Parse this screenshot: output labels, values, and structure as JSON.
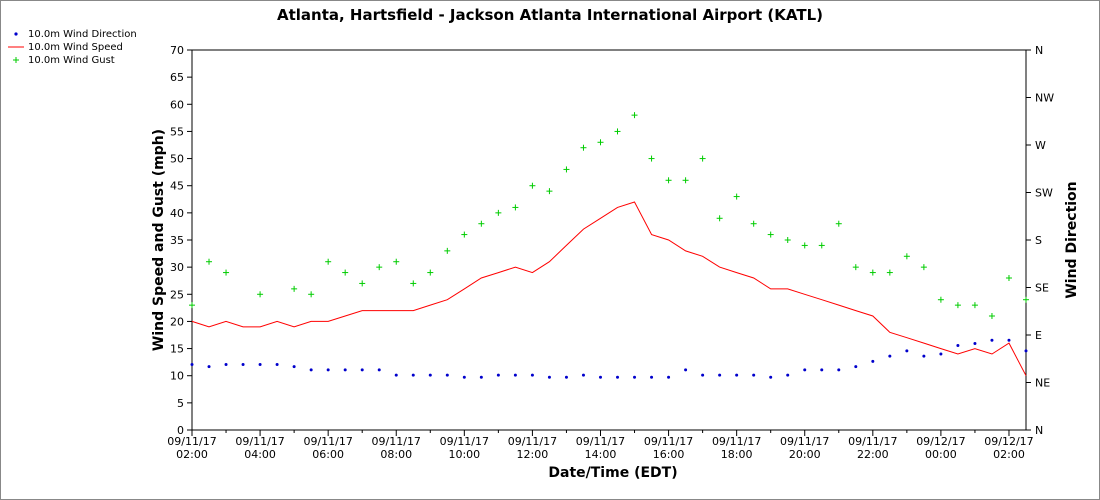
{
  "chart_data": {
    "type": "line",
    "title": "Atlanta, Hartsfield - Jackson Atlanta International Airport (KATL)",
    "xlabel": "Date/Time (EDT)",
    "ylabel": "Wind Speed and Gust (mph)",
    "y2label": "Wind Direction",
    "xlim": [
      2.0,
      26.5
    ],
    "ylim": [
      0,
      70
    ],
    "y_ticks": [
      "0",
      "5",
      "10",
      "15",
      "20",
      "25",
      "30",
      "35",
      "40",
      "45",
      "50",
      "55",
      "60",
      "65",
      "70"
    ],
    "y2_ticks": [
      "N",
      "NE",
      "E",
      "SE",
      "S",
      "SW",
      "W",
      "NW",
      "N"
    ],
    "x_ticks": [
      {
        "date": "09/11/17",
        "time": "02:00",
        "hour": 2
      },
      {
        "date": "09/11/17",
        "time": "04:00",
        "hour": 4
      },
      {
        "date": "09/11/17",
        "time": "06:00",
        "hour": 6
      },
      {
        "date": "09/11/17",
        "time": "08:00",
        "hour": 8
      },
      {
        "date": "09/11/17",
        "time": "10:00",
        "hour": 10
      },
      {
        "date": "09/11/17",
        "time": "12:00",
        "hour": 12
      },
      {
        "date": "09/11/17",
        "time": "14:00",
        "hour": 14
      },
      {
        "date": "09/11/17",
        "time": "16:00",
        "hour": 16
      },
      {
        "date": "09/11/17",
        "time": "18:00",
        "hour": 18
      },
      {
        "date": "09/11/17",
        "time": "20:00",
        "hour": 20
      },
      {
        "date": "09/11/17",
        "time": "22:00",
        "hour": 22
      },
      {
        "date": "09/12/17",
        "time": "00:00",
        "hour": 24
      },
      {
        "date": "09/12/17",
        "time": "02:00",
        "hour": 26
      }
    ],
    "legend_position": "top-left",
    "grid": false,
    "series": [
      {
        "name": "10.0m Wind Direction",
        "marker": "dot",
        "color": "#0000cc",
        "axis": "y2",
        "x": [
          2.0,
          2.5,
          3.0,
          3.5,
          4.0,
          4.5,
          5.0,
          5.5,
          6.0,
          6.5,
          7.0,
          7.5,
          8.0,
          8.5,
          9.0,
          9.5,
          10.0,
          10.5,
          11.0,
          11.5,
          12.0,
          12.5,
          13.0,
          13.5,
          14.0,
          14.5,
          15.0,
          15.5,
          16.0,
          16.5,
          17.0,
          17.5,
          18.0,
          18.5,
          19.0,
          19.5,
          20.0,
          20.5,
          21.0,
          21.5,
          22.0,
          22.5,
          23.0,
          23.5,
          24.0,
          24.5,
          25.0,
          25.5,
          26.0,
          26.5
        ],
        "y": [
          62,
          60,
          62,
          62,
          62,
          62,
          60,
          57,
          57,
          57,
          57,
          57,
          52,
          52,
          52,
          52,
          50,
          50,
          52,
          52,
          52,
          50,
          50,
          52,
          50,
          50,
          50,
          50,
          50,
          57,
          52,
          52,
          52,
          52,
          50,
          52,
          57,
          57,
          57,
          60,
          65,
          70,
          75,
          70,
          72,
          80,
          82,
          85,
          85,
          75
        ]
      },
      {
        "name": "10.0m Wind Speed",
        "marker": "line",
        "color": "#ff0000",
        "axis": "y",
        "x": [
          2.0,
          2.5,
          3.0,
          3.5,
          4.0,
          4.5,
          5.0,
          5.5,
          6.0,
          6.5,
          7.0,
          7.5,
          8.0,
          8.5,
          9.0,
          9.5,
          10.0,
          10.5,
          11.0,
          11.5,
          12.0,
          12.5,
          13.0,
          13.5,
          14.0,
          14.5,
          15.0,
          15.5,
          16.0,
          16.5,
          17.0,
          17.5,
          18.0,
          18.5,
          19.0,
          19.5,
          20.0,
          20.5,
          21.0,
          21.5,
          22.0,
          22.5,
          23.0,
          23.5,
          24.0,
          24.5,
          25.0,
          25.5,
          26.0,
          26.5
        ],
        "y": [
          20,
          19,
          20,
          19,
          19,
          20,
          19,
          20,
          20,
          21,
          22,
          22,
          22,
          22,
          23,
          24,
          26,
          28,
          29,
          30,
          29,
          31,
          34,
          37,
          39,
          41,
          42,
          36,
          35,
          33,
          32,
          30,
          29,
          28,
          26,
          26,
          25,
          24,
          23,
          22,
          21,
          18,
          17,
          16,
          15,
          14,
          15,
          14,
          16,
          10
        ]
      },
      {
        "name": "10.0m Wind Gust",
        "marker": "plus",
        "color": "#00cc00",
        "axis": "y",
        "x": [
          2.0,
          2.5,
          3.0,
          4.0,
          5.0,
          5.5,
          6.0,
          6.5,
          7.0,
          7.5,
          8.0,
          8.5,
          9.0,
          9.5,
          10.0,
          10.5,
          11.0,
          11.5,
          12.0,
          12.5,
          13.0,
          13.5,
          14.0,
          14.5,
          15.0,
          15.5,
          16.0,
          16.5,
          17.0,
          17.5,
          18.0,
          18.5,
          19.0,
          19.5,
          20.0,
          20.5,
          21.0,
          21.5,
          22.0,
          22.5,
          23.0,
          23.5,
          24.0,
          24.5,
          25.0,
          25.5,
          26.0,
          26.5
        ],
        "y": [
          23,
          31,
          29,
          25,
          26,
          25,
          31,
          29,
          27,
          30,
          31,
          27,
          29,
          33,
          36,
          38,
          40,
          41,
          45,
          44,
          48,
          52,
          53,
          55,
          58,
          50,
          46,
          46,
          50,
          39,
          43,
          38,
          36,
          35,
          34,
          34,
          38,
          30,
          29,
          29,
          32,
          30,
          24,
          23,
          23,
          21,
          28,
          24
        ]
      }
    ]
  }
}
